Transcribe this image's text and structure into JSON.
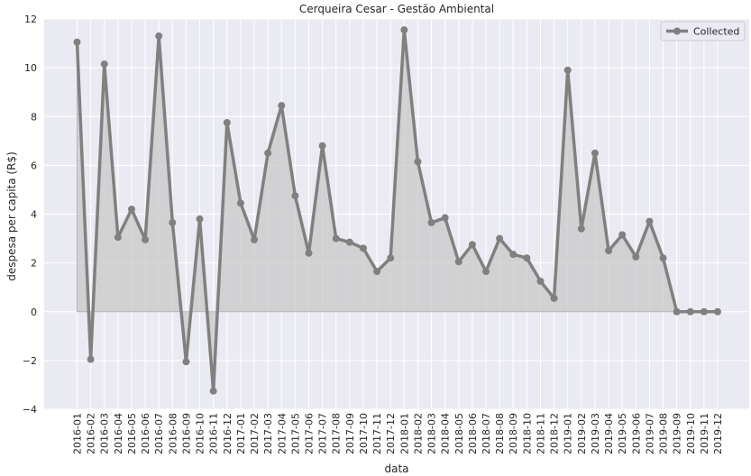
{
  "chart_data": {
    "type": "line",
    "title": "Cerqueira Cesar - Gestão Ambiental",
    "xlabel": "data",
    "ylabel": "despesa per capita (R$)",
    "ylim": [
      -4,
      12
    ],
    "yticks": [
      -4,
      -2,
      0,
      2,
      4,
      6,
      8,
      10,
      12
    ],
    "grid": true,
    "legend_position": "top-right",
    "colors": {
      "background": "#eaeaf2",
      "grid": "#ffffff",
      "series": "#808080",
      "fill": "#c8c8c8"
    },
    "x": [
      "2016-01",
      "2016-02",
      "2016-03",
      "2016-04",
      "2016-05",
      "2016-06",
      "2016-07",
      "2016-08",
      "2016-09",
      "2016-10",
      "2016-11",
      "2016-12",
      "2017-01",
      "2017-02",
      "2017-03",
      "2017-04",
      "2017-05",
      "2017-06",
      "2017-07",
      "2017-08",
      "2017-09",
      "2017-10",
      "2017-11",
      "2017-12",
      "2018-01",
      "2018-02",
      "2018-03",
      "2018-04",
      "2018-05",
      "2018-06",
      "2018-07",
      "2018-08",
      "2018-09",
      "2018-10",
      "2018-11",
      "2018-12",
      "2019-01",
      "2019-02",
      "2019-03",
      "2019-04",
      "2019-05",
      "2019-06",
      "2019-07",
      "2019-08",
      "2019-09",
      "2019-10",
      "2019-11",
      "2019-12"
    ],
    "series": [
      {
        "name": "Collected",
        "values": [
          11.05,
          -1.95,
          10.15,
          3.05,
          4.2,
          2.95,
          11.3,
          3.65,
          -2.05,
          3.8,
          -3.25,
          7.75,
          4.45,
          2.95,
          6.5,
          8.45,
          4.75,
          2.4,
          6.8,
          3.0,
          2.85,
          2.6,
          1.65,
          2.2,
          11.55,
          6.15,
          3.65,
          3.85,
          2.05,
          2.75,
          1.65,
          3.0,
          2.35,
          2.2,
          1.25,
          0.55,
          9.9,
          3.4,
          6.5,
          2.5,
          3.15,
          2.25,
          3.7,
          2.2,
          0.0,
          0.0,
          0.0,
          0.0
        ]
      }
    ]
  }
}
